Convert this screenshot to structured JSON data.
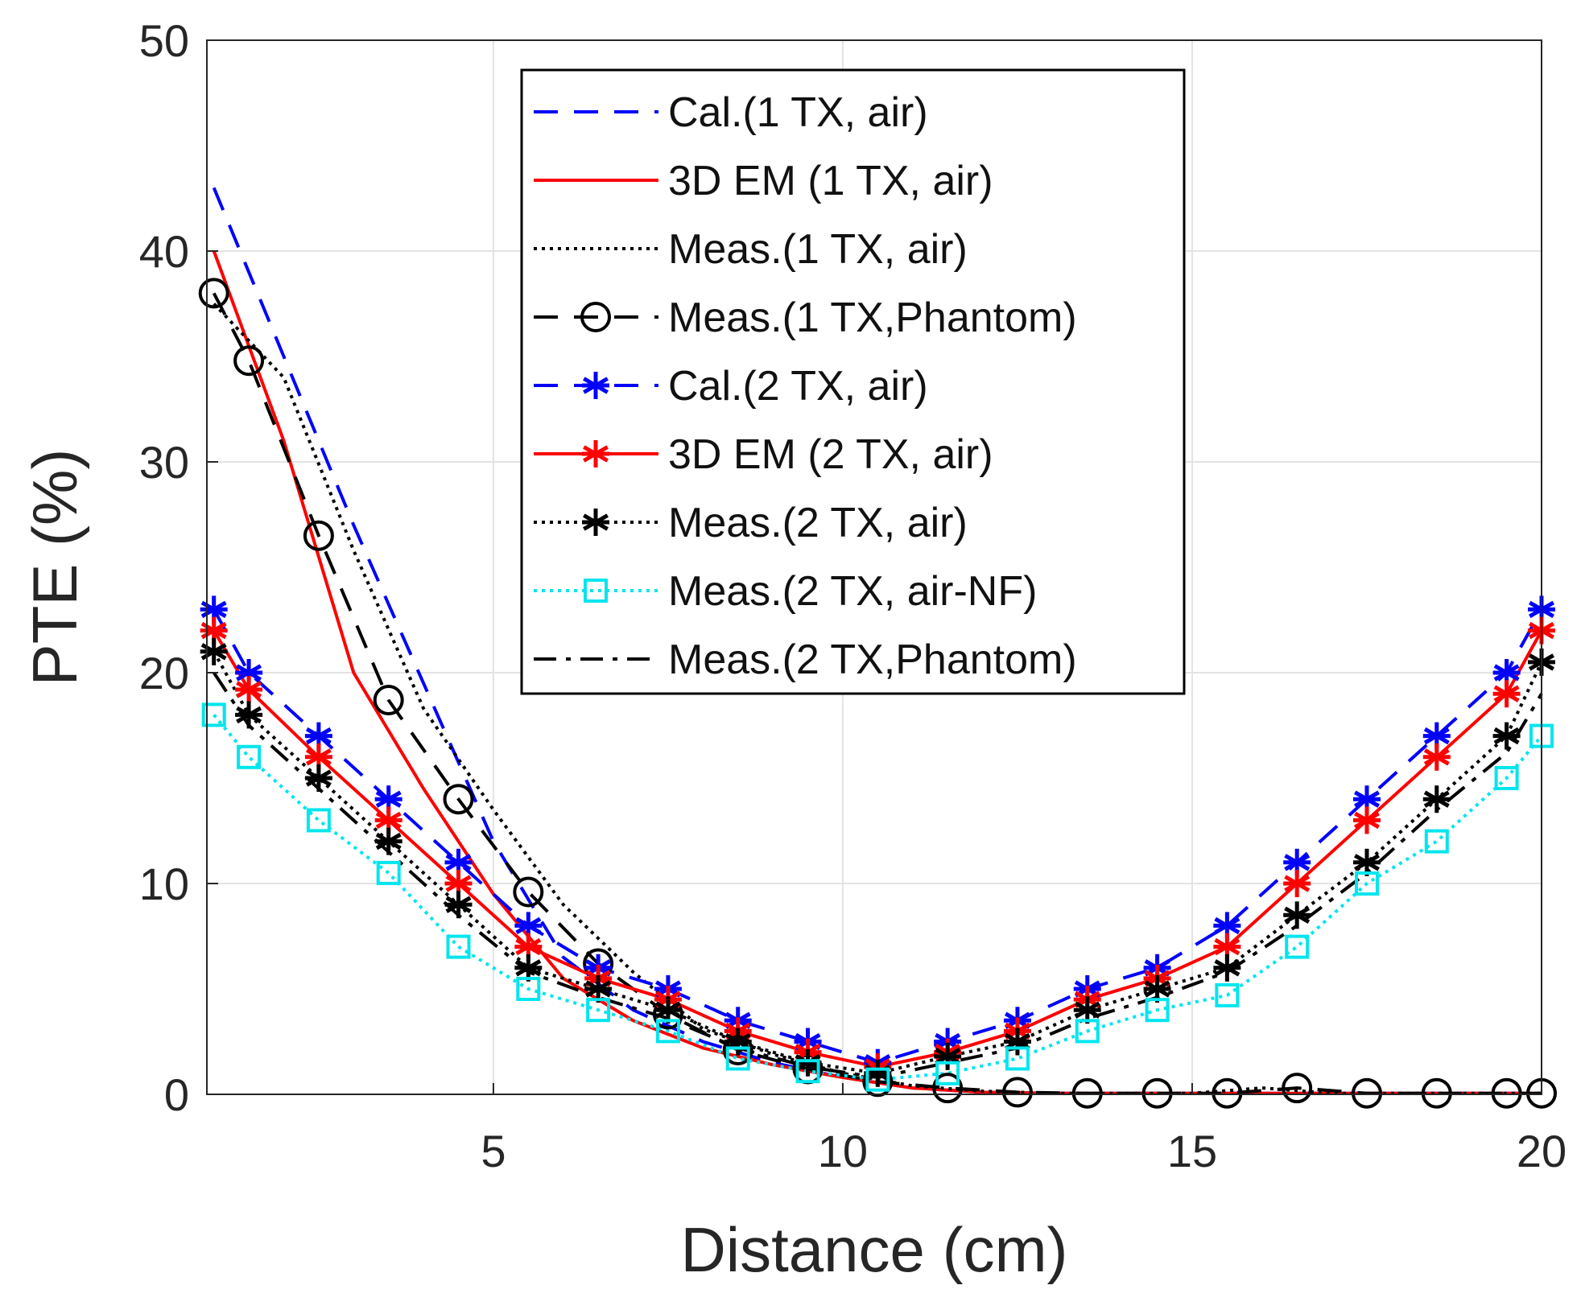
{
  "chart_data": {
    "type": "line",
    "title": "",
    "xlabel": "Distance (cm)",
    "ylabel": "PTE (%)",
    "xlim": [
      0.9,
      20
    ],
    "ylim": [
      0,
      50
    ],
    "xticks": [
      5,
      10,
      15,
      20
    ],
    "yticks": [
      0,
      10,
      20,
      30,
      40,
      50
    ],
    "grid": true,
    "legend_position": "top-center",
    "series": [
      {
        "name": "Cal.(1 TX, air)",
        "color": "#0000ff",
        "line": "dashed",
        "marker": "none",
        "x": [
          1,
          2,
          3,
          4,
          5,
          6,
          7,
          8,
          9,
          10,
          11,
          12,
          13,
          14,
          15,
          16,
          17,
          18,
          19,
          20
        ],
        "y": [
          43,
          35,
          27,
          19.5,
          12,
          6.5,
          4,
          2.5,
          1.5,
          0.8,
          0.3,
          0.1,
          0.05,
          0.05,
          0.05,
          0.05,
          0.05,
          0.05,
          0.05,
          0.05
        ]
      },
      {
        "name": "3D EM (1 TX, air)",
        "color": "#ff0000",
        "line": "solid",
        "marker": "none",
        "x": [
          1,
          2,
          3,
          4,
          5,
          6,
          7,
          8,
          9,
          10,
          11,
          12,
          13,
          14,
          15,
          16,
          17,
          18,
          19,
          20
        ],
        "y": [
          40,
          31,
          20,
          14.5,
          9.5,
          5.5,
          3.5,
          2.2,
          1.4,
          0.8,
          0.3,
          0.1,
          0.05,
          0.05,
          0.05,
          0.05,
          0.05,
          0.05,
          0.05,
          0.05
        ]
      },
      {
        "name": "Meas.(1 TX, air)",
        "color": "#000000",
        "line": "dotted",
        "marker": "none",
        "x": [
          1,
          2,
          3,
          4,
          5,
          6,
          7,
          8,
          9,
          10,
          11,
          12,
          13,
          14,
          15,
          16,
          17,
          18,
          19,
          20
        ],
        "y": [
          37.5,
          34,
          25.8,
          18.3,
          13.5,
          9,
          5.8,
          3.1,
          1.9,
          1,
          0.4,
          0.15,
          0.05,
          0.05,
          0.05,
          0.3,
          0.05,
          0.05,
          0.05,
          0.05
        ]
      },
      {
        "name": "Meas.(1 TX,Phantom)",
        "color": "#000000",
        "line": "dashed",
        "marker": "circle",
        "x": [
          1,
          1.5,
          2.5,
          3.5,
          4.5,
          5.5,
          6.5,
          7.5,
          8.5,
          9.5,
          10.5,
          11.5,
          12.5,
          13.5,
          14.5,
          15.5,
          16.5,
          17.5,
          18.5,
          19.5,
          20
        ],
        "y": [
          38,
          34.8,
          26.5,
          18.7,
          14,
          9.6,
          6.2,
          3.8,
          2.1,
          1.2,
          0.6,
          0.3,
          0.1,
          0.05,
          0.05,
          0.05,
          0.3,
          0.05,
          0.05,
          0.05,
          0.05
        ]
      },
      {
        "name": "Cal.(2 TX, air)",
        "color": "#0000ff",
        "line": "dashed",
        "marker": "asterisk",
        "x": [
          1,
          1.5,
          2.5,
          3.5,
          4.5,
          5.5,
          6.5,
          7.5,
          8.5,
          9.5,
          10.5,
          11.5,
          12.5,
          13.5,
          14.5,
          15.5,
          16.5,
          17.5,
          18.5,
          19.5,
          20
        ],
        "y": [
          23,
          20,
          17,
          14,
          11,
          8,
          6,
          5,
          3.5,
          2.5,
          1.5,
          2.5,
          3.5,
          5,
          6,
          8,
          11,
          14,
          17,
          20,
          23
        ]
      },
      {
        "name": "3D EM (2 TX, air)",
        "color": "#ff0000",
        "line": "solid",
        "marker": "asterisk",
        "x": [
          1,
          1.5,
          2.5,
          3.5,
          4.5,
          5.5,
          6.5,
          7.5,
          8.5,
          9.5,
          10.5,
          11.5,
          12.5,
          13.5,
          14.5,
          15.5,
          16.5,
          17.5,
          18.5,
          19.5,
          20
        ],
        "y": [
          22,
          19.2,
          16,
          13,
          10,
          7,
          5.5,
          4.5,
          3,
          2,
          1.3,
          2,
          3,
          4.5,
          5.5,
          7,
          10,
          13,
          16,
          19,
          22
        ]
      },
      {
        "name": "Meas.(2 TX, air)",
        "color": "#000000",
        "line": "dotted",
        "marker": "asterisk",
        "x": [
          1,
          1.5,
          2.5,
          3.5,
          4.5,
          5.5,
          6.5,
          7.5,
          8.5,
          9.5,
          10.5,
          11.5,
          12.5,
          13.5,
          14.5,
          15.5,
          16.5,
          17.5,
          18.5,
          19.5,
          20
        ],
        "y": [
          21,
          18,
          15,
          12,
          9,
          6,
          5,
          4,
          2.5,
          1.5,
          1,
          1.8,
          2.5,
          4,
          5,
          6,
          8.5,
          11,
          14,
          17,
          20.5
        ]
      },
      {
        "name": "Meas.(2 TX, air-NF)",
        "color": "#00e5ee",
        "line": "dotted",
        "marker": "square",
        "x": [
          1,
          1.5,
          2.5,
          3.5,
          4.5,
          5.5,
          6.5,
          7.5,
          8.5,
          9.5,
          10.5,
          11.5,
          12.5,
          13.5,
          14.5,
          15.5,
          16.5,
          17.5,
          18.5,
          19.5,
          20
        ],
        "y": [
          18,
          16,
          13,
          10.5,
          7,
          5,
          4,
          3,
          1.7,
          1.1,
          0.7,
          1,
          1.7,
          3,
          4,
          4.7,
          7,
          10,
          12,
          15,
          17
        ]
      },
      {
        "name": "Meas.(2 TX,Phantom)",
        "color": "#000000",
        "line": "dashdot",
        "marker": "none",
        "x": [
          1,
          1.5,
          2.5,
          3.5,
          4.5,
          5.5,
          6.5,
          7.5,
          8.5,
          9.5,
          10.5,
          11.5,
          12.5,
          13.5,
          14.5,
          15.5,
          16.5,
          17.5,
          18.5,
          19.5,
          20
        ],
        "y": [
          20,
          17.5,
          14.5,
          11.5,
          8.5,
          5.8,
          4.6,
          3.6,
          2.2,
          1.3,
          0.8,
          1.5,
          2.2,
          3.6,
          4.6,
          5.8,
          8,
          10.5,
          13.5,
          16.2,
          19
        ]
      }
    ]
  }
}
